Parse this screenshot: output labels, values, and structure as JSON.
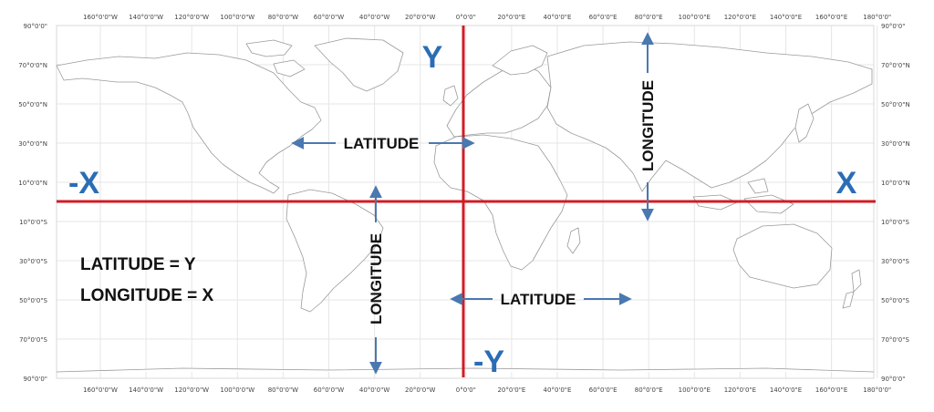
{
  "map": {
    "lon_ticks": [
      "160°0'0\"W",
      "140°0'0\"W",
      "120°0'0\"W",
      "100°0'0\"W",
      "80°0'0\"W",
      "60°0'0\"W",
      "40°0'0\"W",
      "20°0'0\"W",
      "0°0'0\"",
      "20°0'0\"E",
      "40°0'0\"E",
      "60°0'0\"E",
      "80°0'0\"E",
      "100°0'0\"E",
      "120°0'0\"E",
      "140°0'0\"E",
      "160°0'0\"E",
      "180°0'0\""
    ],
    "lat_ticks_left": [
      "90°0'0\"",
      "70°0'0\"N",
      "50°0'0\"N",
      "30°0'0\"N",
      "10°0'0\"N",
      "10°0'0\"S",
      "30°0'0\"S",
      "50°0'0\"S",
      "70°0'0\"S",
      "90°0'0\""
    ],
    "lat_ticks_right": [
      "90°0'0\"",
      "70°0'0\"N",
      "50°0'0\"N",
      "30°0'0\"N",
      "10°0'0\"N",
      "10°0'0\"S",
      "30°0'0\"S",
      "50°0'0\"S",
      "70°0'0\"S",
      "90°0'0\""
    ],
    "axis_labels": {
      "pos_y": "Y",
      "neg_y": "-Y",
      "pos_x": "X",
      "neg_x": "-X"
    },
    "annotations": {
      "latitude_north": "LATITUDE",
      "latitude_south": "LATITUDE",
      "longitude_east": "LONGITUDE",
      "longitude_west": "LONGITUDE"
    },
    "legend": {
      "line1": "LATITUDE = Y",
      "line2": "LONGITUDE = X"
    },
    "colors": {
      "axis_red": "#d01c24",
      "axis_letter_blue": "#2a6db5",
      "arrow_blue": "#4a78b0",
      "land_outline": "#9a9a9a",
      "grid": "#e6e6e6"
    }
  }
}
